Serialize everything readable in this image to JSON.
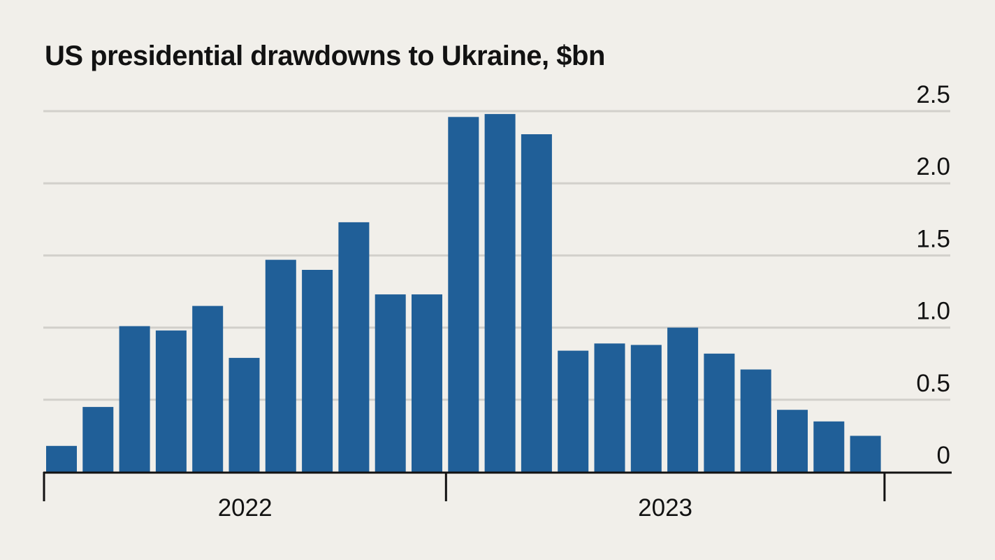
{
  "chart_data": {
    "type": "bar",
    "title": "US presidential drawdowns to Ukraine, $bn",
    "xlabel": "",
    "ylabel": "",
    "ylim": [
      0,
      2.5
    ],
    "yticks": [
      {
        "value": 0,
        "label": "0"
      },
      {
        "value": 0.5,
        "label": "0.5"
      },
      {
        "value": 1.0,
        "label": "1.0"
      },
      {
        "value": 1.5,
        "label": "1.5"
      },
      {
        "value": 2.0,
        "label": "2.0"
      },
      {
        "value": 2.5,
        "label": "2.5"
      }
    ],
    "year_groups": [
      {
        "label": "2022",
        "bar_count": 11
      },
      {
        "label": "2023",
        "bar_count": 12
      }
    ],
    "values": [
      0.18,
      0.45,
      1.01,
      0.98,
      1.15,
      0.79,
      1.47,
      1.4,
      1.73,
      1.23,
      1.23,
      2.46,
      2.48,
      2.34,
      0.84,
      0.89,
      0.88,
      1.0,
      0.82,
      0.71,
      0.43,
      0.35,
      0.25
    ],
    "bar_color": "#205f98",
    "grid": true,
    "y_axis_position": "right",
    "legend": "none"
  }
}
